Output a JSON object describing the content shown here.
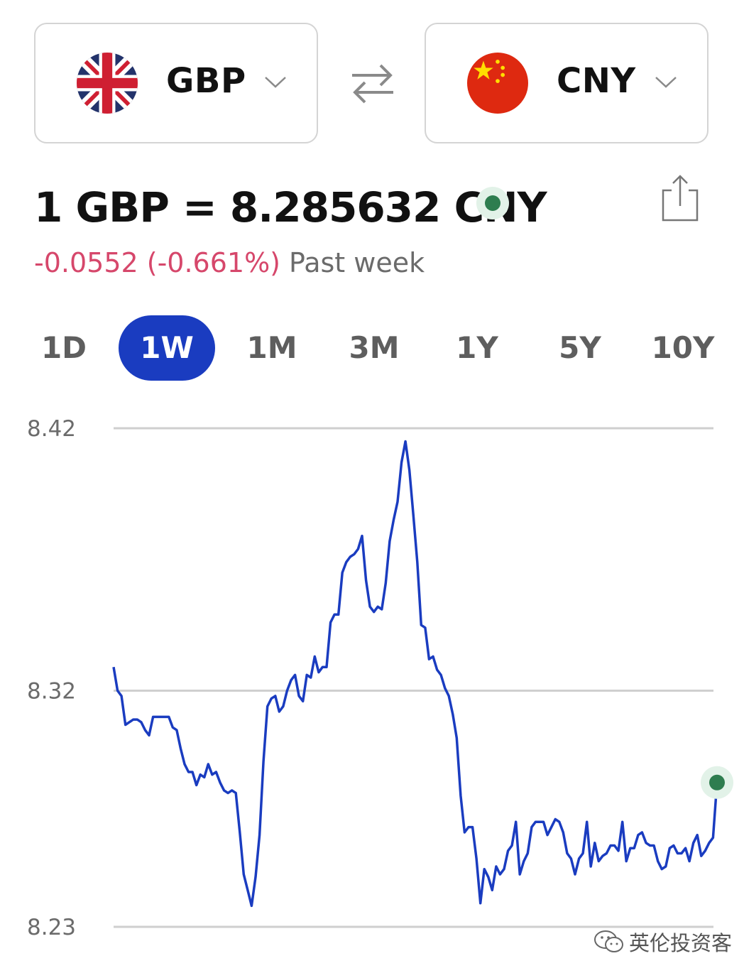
{
  "converter": {
    "from": {
      "code": "GBP",
      "flag": "uk-flag-icon"
    },
    "to": {
      "code": "CNY",
      "flag": "china-flag-icon"
    },
    "swap_icon": "swap-arrows-icon"
  },
  "rate": {
    "text": "1 GBP = 8.285632 CNY",
    "change": "-0.0552 (-0.661%)",
    "period": "Past week",
    "change_color": "#d6476b",
    "live_color": "#2e7d4f"
  },
  "tabs": [
    {
      "label": "1D",
      "active": false
    },
    {
      "label": "1W",
      "active": true
    },
    {
      "label": "1M",
      "active": false
    },
    {
      "label": "3M",
      "active": false
    },
    {
      "label": "1Y",
      "active": false
    },
    {
      "label": "5Y",
      "active": false
    },
    {
      "label": "10Y",
      "active": false
    }
  ],
  "accent_color": "#1a3cc0",
  "chart_data": {
    "type": "line",
    "y_ticks": [
      "8.42",
      "8.32",
      "8.23"
    ],
    "ylim": [
      8.23,
      8.42
    ],
    "grid": true,
    "line_color": "#1a3cc0",
    "values": [
      8.329,
      8.32,
      8.318,
      8.307,
      8.308,
      8.309,
      8.309,
      8.308,
      8.305,
      8.303,
      8.31,
      8.31,
      8.31,
      8.31,
      8.31,
      8.306,
      8.305,
      8.298,
      8.292,
      8.289,
      8.289,
      8.284,
      8.288,
      8.287,
      8.292,
      8.288,
      8.289,
      8.285,
      8.282,
      8.281,
      8.282,
      8.281,
      8.266,
      8.25,
      8.244,
      8.238,
      8.249,
      8.265,
      8.293,
      8.314,
      8.317,
      8.318,
      8.312,
      8.314,
      8.32,
      8.324,
      8.326,
      8.318,
      8.316,
      8.326,
      8.325,
      8.333,
      8.327,
      8.329,
      8.329,
      8.346,
      8.349,
      8.349,
      8.365,
      8.369,
      8.371,
      8.372,
      8.374,
      8.379,
      8.362,
      8.352,
      8.35,
      8.352,
      8.351,
      8.361,
      8.377,
      8.385,
      8.392,
      8.407,
      8.415,
      8.404,
      8.387,
      8.369,
      8.345,
      8.344,
      8.332,
      8.333,
      8.328,
      8.326,
      8.321,
      8.318,
      8.311,
      8.302,
      8.28,
      8.266,
      8.268,
      8.268,
      8.256,
      8.239,
      8.252,
      8.249,
      8.244,
      8.253,
      8.25,
      8.252,
      8.259,
      8.261,
      8.27,
      8.25,
      8.255,
      8.258,
      8.268,
      8.27,
      8.27,
      8.27,
      8.265,
      8.268,
      8.271,
      8.27,
      8.266,
      8.258,
      8.256,
      8.25,
      8.256,
      8.258,
      8.27,
      8.253,
      8.262,
      8.255,
      8.257,
      8.258,
      8.261,
      8.261,
      8.259,
      8.27,
      8.255,
      8.26,
      8.26,
      8.265,
      8.266,
      8.262,
      8.261,
      8.261,
      8.255,
      8.252,
      8.253,
      8.26,
      8.261,
      8.258,
      8.258,
      8.26,
      8.255,
      8.262,
      8.265,
      8.257,
      8.259,
      8.262,
      8.264,
      8.285
    ]
  },
  "watermark": {
    "text": "英伦投资客",
    "icon": "wechat-icon"
  }
}
